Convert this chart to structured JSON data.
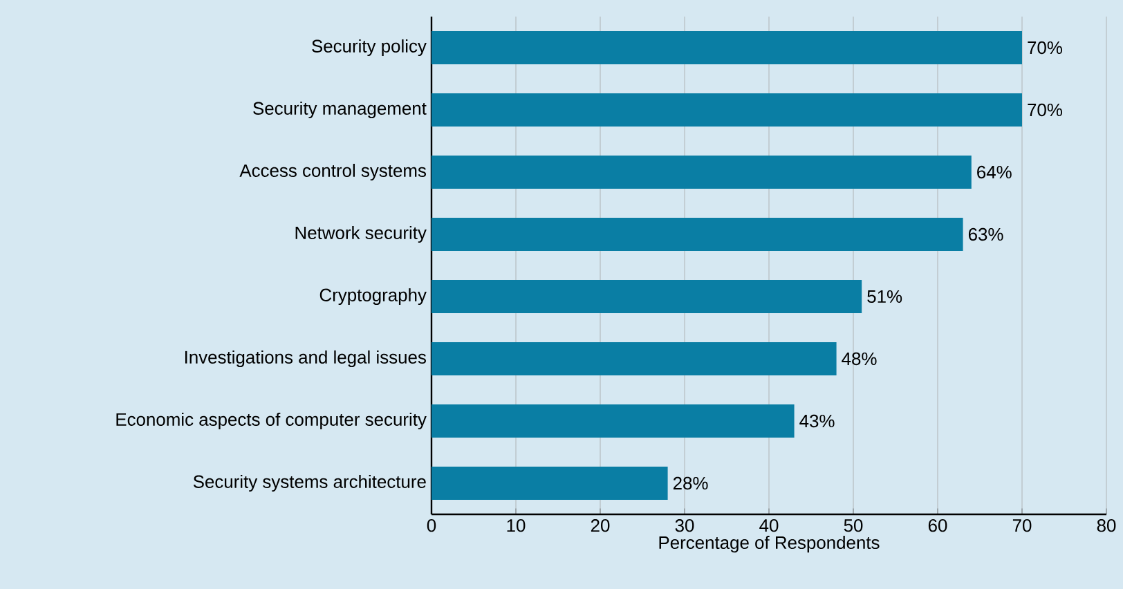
{
  "chart_data": {
    "type": "bar",
    "orientation": "horizontal",
    "xlabel": "Percentage of Respondents",
    "categories": [
      "Security policy",
      "Security management",
      "Access control systems",
      "Network security",
      "Cryptography",
      "Investigations and legal issues",
      "Economic aspects of computer security",
      "Security systems architecture"
    ],
    "values": [
      70,
      70,
      64,
      63,
      51,
      48,
      43,
      28
    ],
    "value_labels": [
      "70%",
      "70%",
      "64%",
      "63%",
      "51%",
      "48%",
      "43%",
      "28%"
    ],
    "color": "#0a7ea4",
    "xlim": [
      0,
      80
    ],
    "xticks": [
      0,
      10,
      20,
      30,
      40,
      50,
      60,
      70,
      80
    ],
    "grid": "x"
  }
}
